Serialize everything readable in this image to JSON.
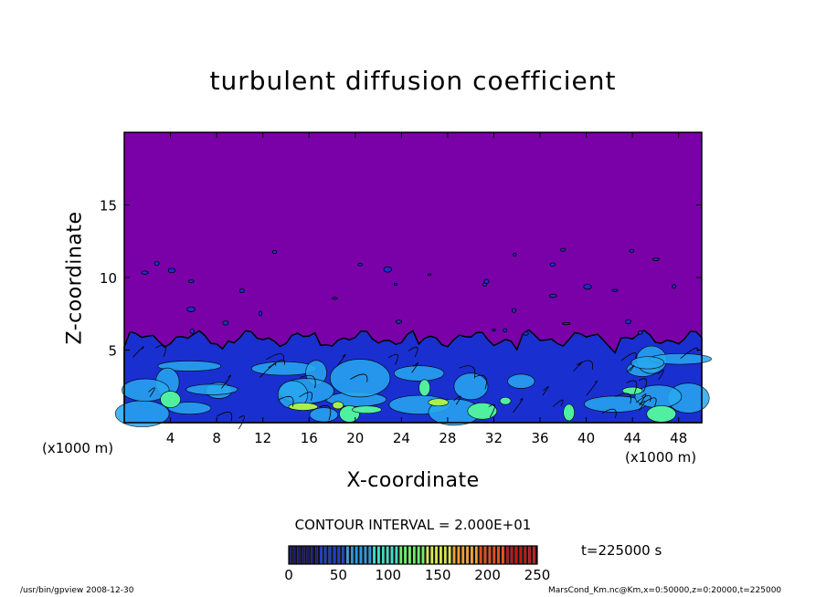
{
  "chart_data": {
    "type": "heatmap",
    "title": "turbulent diffusion coefficient",
    "xlabel": "X-coordinate",
    "ylabel": "Z-coordinate",
    "x_unit_left": "(x1000 m)",
    "x_unit_right": "(x1000 m)",
    "xlim": [
      0,
      50
    ],
    "ylim": [
      0,
      20
    ],
    "xticks": [
      4,
      8,
      12,
      16,
      20,
      24,
      28,
      32,
      36,
      40,
      44,
      48
    ],
    "yticks": [
      5,
      10,
      15
    ],
    "contour_interval_text": "CONTOUR INTERVAL = 2.000E+01",
    "time_text": "t=225000 s",
    "colorbar": {
      "range": [
        0,
        250
      ],
      "ticks": [
        0,
        50,
        100,
        150,
        200,
        250
      ],
      "colors": [
        "#1a1a6e",
        "#1f3fc8",
        "#2a9be0",
        "#3de0c8",
        "#6cf06a",
        "#d8e84a",
        "#f0a030",
        "#e05020",
        "#c01818"
      ]
    },
    "field_colors": {
      "background": "#7a00a8",
      "turbulent_layer_top_km": 5.8,
      "low": "#1a2fd0",
      "mid": "#28a8f0",
      "high": "#50f0a0",
      "peak": "#a8f050"
    },
    "footer_left": "/usr/bin/gpview   2008-12-30",
    "footer_right": "MarsCond_Km.nc@Km,x=0:50000,z=0:20000,t=225000"
  }
}
